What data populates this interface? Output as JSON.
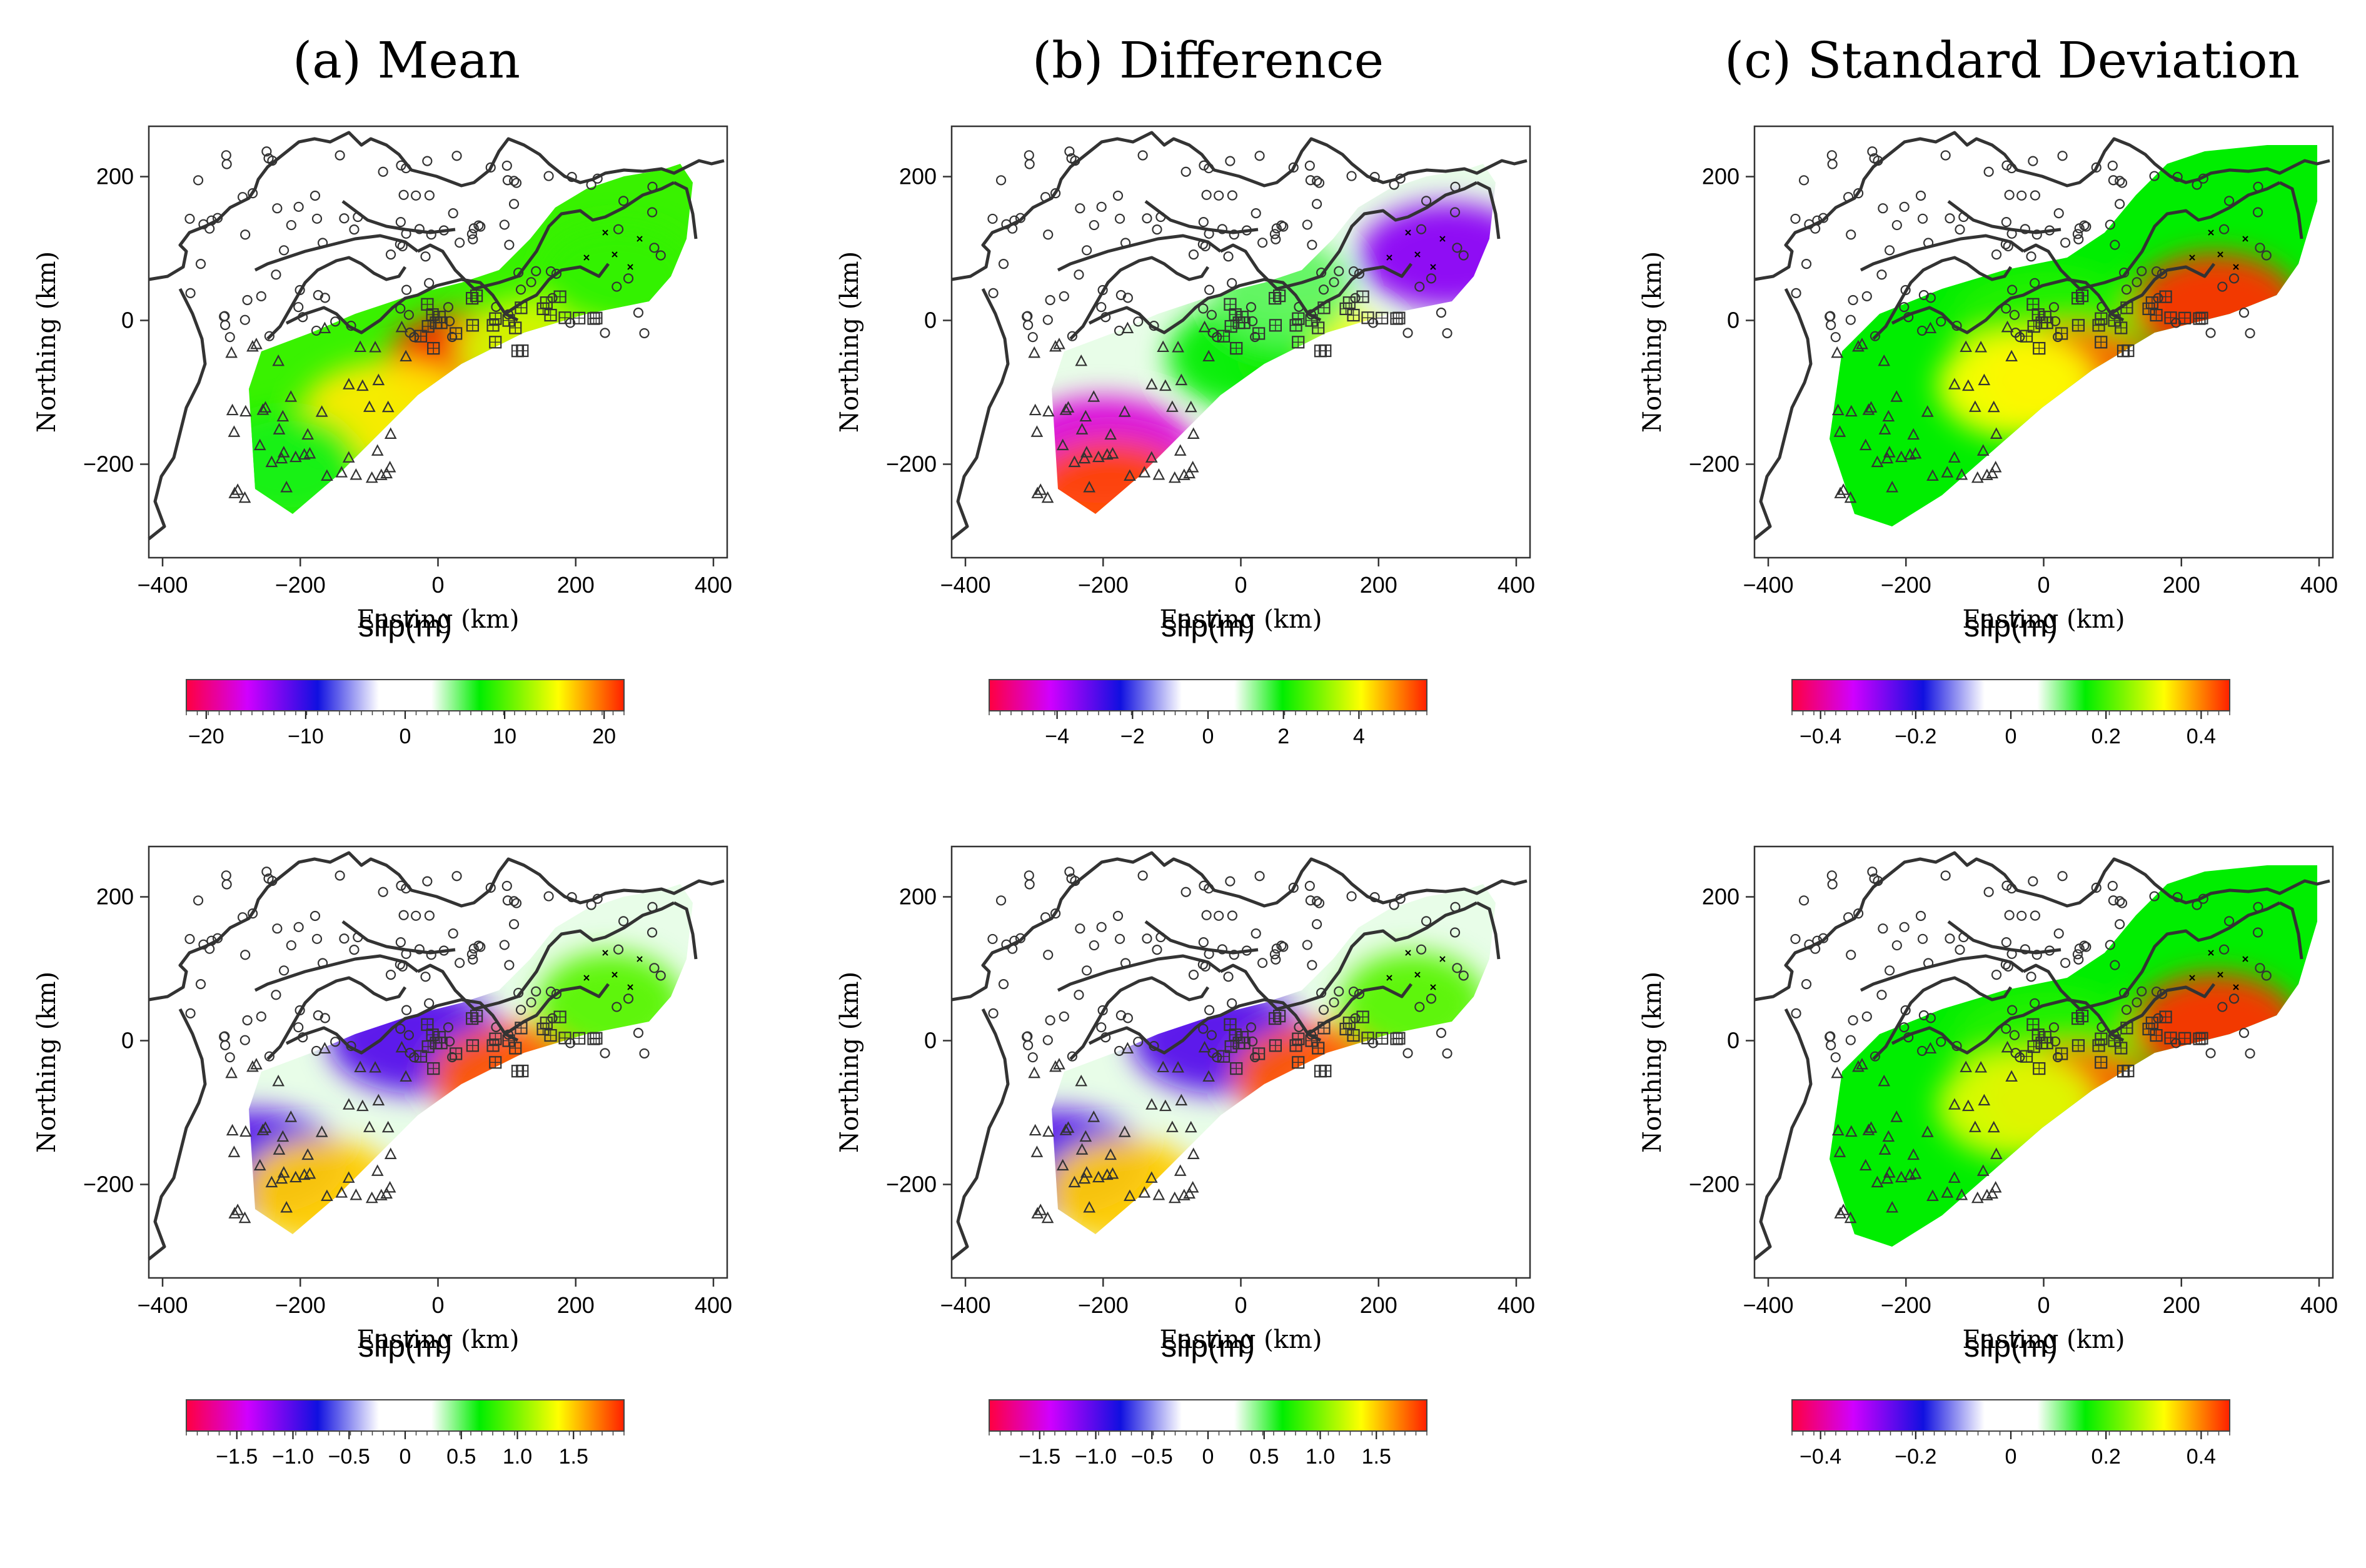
{
  "figure": {
    "columns": [
      {
        "key": "a",
        "title": "(a) Mean"
      },
      {
        "key": "b",
        "title": "(b) Difference"
      },
      {
        "key": "c",
        "title": "(c) Standard Deviation"
      }
    ]
  },
  "chart_data": [
    {
      "type": "heatmap",
      "panel": "top-mean",
      "title": "(a) Mean",
      "xlabel": "Easting (km)",
      "ylabel": "Northing (km)",
      "xlim": [
        -420,
        420
      ],
      "ylim": [
        -330,
        270
      ],
      "xticks": [
        -400,
        -200,
        0,
        200,
        400
      ],
      "yticks": [
        200,
        0,
        -200
      ],
      "colorbar": {
        "label": "slip(m)",
        "range": [
          -22,
          22
        ],
        "ticks": [
          -20,
          -10,
          0,
          10,
          20
        ],
        "tick_labels": [
          "−20",
          "−10",
          "0",
          "10",
          "20"
        ]
      },
      "slip_field": [
        {
          "x": 60,
          "y": -60,
          "value": 22
        },
        {
          "x": -70,
          "y": -130,
          "value": 16
        },
        {
          "x": 150,
          "y": -40,
          "value": 14
        },
        {
          "x": 260,
          "y": 60,
          "value": 9
        },
        {
          "x": -220,
          "y": -200,
          "value": 7
        }
      ]
    },
    {
      "type": "heatmap",
      "panel": "top-difference",
      "title": "(b) Difference",
      "xlabel": "Easting (km)",
      "ylabel": "Northing (km)",
      "xlim": [
        -420,
        420
      ],
      "ylim": [
        -330,
        270
      ],
      "xticks": [
        -400,
        -200,
        0,
        200,
        400
      ],
      "yticks": [
        200,
        0,
        -200
      ],
      "colorbar": {
        "label": "slip(m)",
        "range": [
          -5.8,
          5.8
        ],
        "ticks": [
          -4,
          -2,
          0,
          2,
          4
        ],
        "tick_labels": [
          "−4",
          "−2",
          "0",
          "2",
          "4"
        ]
      },
      "slip_field": [
        {
          "x": -200,
          "y": -180,
          "value": -4.5
        },
        {
          "x": 300,
          "y": 90,
          "value": -3.5
        },
        {
          "x": -190,
          "y": -240,
          "value": 5.5
        },
        {
          "x": 110,
          "y": -50,
          "value": 4
        },
        {
          "x": 0,
          "y": -50,
          "value": 2
        },
        {
          "x": 60,
          "y": 40,
          "value": 1.5
        }
      ]
    },
    {
      "type": "heatmap",
      "panel": "top-stddev",
      "title": "(c) Standard Deviation",
      "xlabel": "Easting (km)",
      "ylabel": "Northing (km)",
      "xlim": [
        -420,
        420
      ],
      "ylim": [
        -330,
        270
      ],
      "xticks": [
        -400,
        -200,
        0,
        200,
        400
      ],
      "yticks": [
        200,
        0,
        -200
      ],
      "colorbar": {
        "label": "slip(m)",
        "range": [
          -0.46,
          0.46
        ],
        "ticks": [
          -0.4,
          -0.2,
          0,
          0.2,
          0.4
        ],
        "tick_labels": [
          "−0.4",
          "−0.2",
          "0",
          "0.2",
          "0.4"
        ]
      },
      "slip_field": [
        {
          "x": 0,
          "y": 0,
          "value": 0.18
        },
        {
          "x": 40,
          "y": -80,
          "value": 0.42
        },
        {
          "x": 250,
          "y": 20,
          "value": 0.45
        },
        {
          "x": -40,
          "y": -90,
          "value": 0.32
        }
      ]
    },
    {
      "type": "heatmap",
      "panel": "bottom-mean",
      "xlabel": "Easting (km)",
      "ylabel": "Northing (km)",
      "xlim": [
        -420,
        420
      ],
      "ylim": [
        -330,
        270
      ],
      "xticks": [
        -400,
        -200,
        0,
        200,
        400
      ],
      "yticks": [
        200,
        0,
        -200
      ],
      "colorbar": {
        "label": "slip(m)",
        "range": [
          -1.95,
          1.95
        ],
        "ticks": [
          -1.5,
          -1.0,
          -0.5,
          0,
          0.5,
          1.0,
          1.5
        ],
        "tick_labels": [
          "−1.5",
          "−1.0",
          "−0.5",
          "0",
          "0.5",
          "1.0",
          "1.5"
        ]
      },
      "slip_field": [
        {
          "x": -270,
          "y": -170,
          "value": -1.0
        },
        {
          "x": -30,
          "y": 0,
          "value": -1.0
        },
        {
          "x": 110,
          "y": -50,
          "value": 1.8
        },
        {
          "x": -170,
          "y": -210,
          "value": 1.5
        },
        {
          "x": 250,
          "y": 50,
          "value": 0.9
        }
      ]
    },
    {
      "type": "heatmap",
      "panel": "bottom-difference",
      "xlabel": "Easting (km)",
      "ylabel": "Northing (km)",
      "xlim": [
        -420,
        420
      ],
      "ylim": [
        -330,
        270
      ],
      "xticks": [
        -400,
        -200,
        0,
        200,
        400
      ],
      "yticks": [
        200,
        0,
        -200
      ],
      "colorbar": {
        "label": "slip(m)",
        "range": [
          -1.95,
          1.95
        ],
        "ticks": [
          -1.5,
          -1.0,
          -0.5,
          0,
          0.5,
          1.0,
          1.5
        ],
        "tick_labels": [
          "−1.5",
          "−1.0",
          "−0.5",
          "0",
          "0.5",
          "1.0",
          "1.5"
        ]
      },
      "slip_field": [
        {
          "x": -270,
          "y": -170,
          "value": -1.0
        },
        {
          "x": -30,
          "y": 0,
          "value": -1.0
        },
        {
          "x": 110,
          "y": -50,
          "value": 1.8
        },
        {
          "x": -170,
          "y": -210,
          "value": 1.5
        },
        {
          "x": 250,
          "y": 50,
          "value": 0.9
        }
      ]
    },
    {
      "type": "heatmap",
      "panel": "bottom-stddev",
      "xlabel": "Easting (km)",
      "ylabel": "Northing (km)",
      "xlim": [
        -420,
        420
      ],
      "ylim": [
        -330,
        270
      ],
      "xticks": [
        -400,
        -200,
        0,
        200,
        400
      ],
      "yticks": [
        200,
        0,
        -200
      ],
      "colorbar": {
        "label": "slip(m)",
        "range": [
          -0.46,
          0.46
        ],
        "ticks": [
          -0.4,
          -0.2,
          0,
          0.2,
          0.4
        ],
        "tick_labels": [
          "−0.4",
          "−0.2",
          "0",
          "0.2",
          "0.4"
        ]
      },
      "slip_field": [
        {
          "x": 0,
          "y": 0,
          "value": 0.18
        },
        {
          "x": 40,
          "y": -80,
          "value": 0.42
        },
        {
          "x": 250,
          "y": 20,
          "value": 0.45
        },
        {
          "x": -40,
          "y": -90,
          "value": 0.3
        }
      ]
    }
  ],
  "colormap": [
    "#ff0000",
    "#ff8800",
    "#ffff00",
    "#00dd00",
    "#ffffff",
    "#0000dd",
    "#aa00ff",
    "#ff0080"
  ]
}
